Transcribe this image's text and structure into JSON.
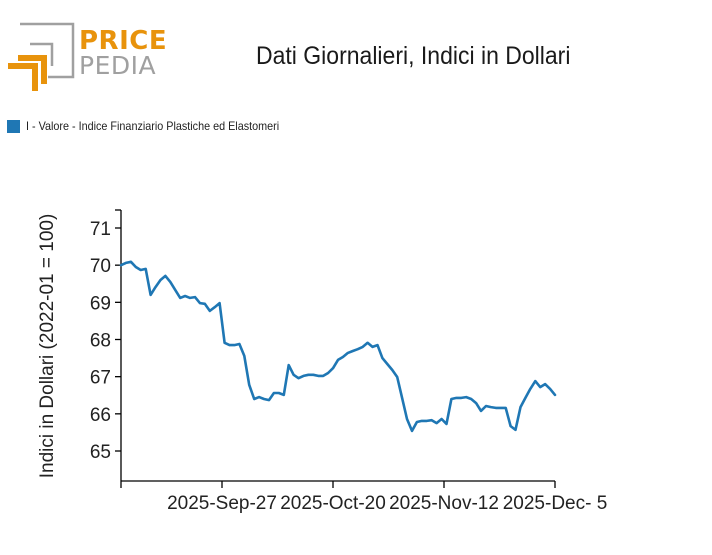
{
  "header": {
    "logo_top": "PRICE",
    "logo_bottom": "PEDIA",
    "title": "Dati Giornalieri, Indici in Dollari"
  },
  "colors": {
    "series": "#1f77b4",
    "logo_orange": "#e8930c",
    "logo_gray": "#a0a0a0"
  },
  "chart_data": {
    "type": "line",
    "title": "Dati Giornalieri, Indici in Dollari",
    "xlabel": "",
    "ylabel": "Indici in Dollari (2022-01 = 100)",
    "ylim": [
      64.2,
      71.5
    ],
    "yticks": [
      65,
      66,
      67,
      68,
      69,
      70,
      71
    ],
    "ytick_labels": [
      "65",
      "66",
      "67",
      "68",
      "69",
      "70",
      "71"
    ],
    "xtick_labels": [
      "",
      "2025-Sep-27",
      "2025-Oct-20",
      "2025-Nov-12",
      "2025-Dec- 5"
    ],
    "grid": false,
    "legend": {
      "position": "top-left",
      "entries": [
        "I - Valore - Indice Finanziario Plastiche ed Elastomeri"
      ]
    },
    "series": [
      {
        "name": "I - Valore - Indice Finanziario Plastiche ed Elastomeri",
        "values": [
          70.0,
          70.06,
          70.09,
          69.95,
          69.87,
          69.9,
          69.2,
          69.41,
          69.6,
          69.71,
          69.55,
          69.33,
          69.12,
          69.17,
          69.12,
          69.14,
          68.98,
          68.96,
          68.77,
          68.87,
          68.98,
          67.91,
          67.85,
          67.85,
          67.88,
          67.56,
          66.78,
          66.4,
          66.45,
          66.4,
          66.37,
          66.56,
          66.56,
          66.51,
          67.31,
          67.05,
          66.96,
          67.02,
          67.05,
          67.05,
          67.02,
          67.02,
          67.1,
          67.23,
          67.45,
          67.53,
          67.64,
          67.69,
          67.74,
          67.8,
          67.91,
          67.8,
          67.85,
          67.5,
          67.34,
          67.18,
          66.99,
          66.43,
          65.86,
          65.54,
          65.78,
          65.81,
          65.81,
          65.83,
          65.75,
          65.86,
          65.73,
          66.4,
          66.43,
          66.43,
          66.45,
          66.4,
          66.29,
          66.08,
          66.21,
          66.18,
          66.16,
          66.16,
          66.16,
          65.67,
          65.57,
          66.18,
          66.43,
          66.67,
          66.88,
          66.72,
          66.8,
          66.67,
          66.51
        ]
      }
    ]
  }
}
